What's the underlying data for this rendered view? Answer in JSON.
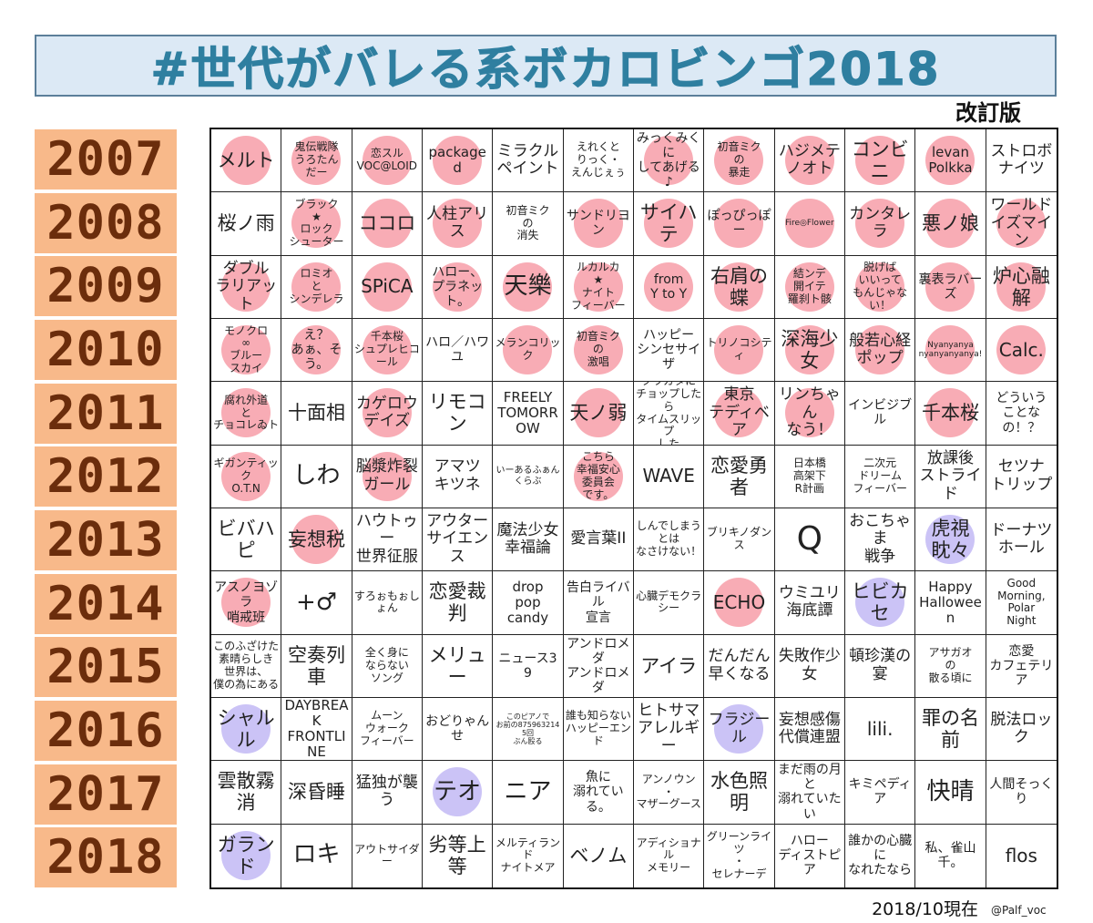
{
  "title": "#世代がバレる系ボカロビンゴ2018",
  "revision": "改訂版",
  "footer": {
    "date": "2018/10現在",
    "handle": "@Palf_voc"
  },
  "colors": {
    "mark_pink": "#f7a3ad",
    "mark_purple": "#c8c0f5",
    "year_bg": "#f8b98a",
    "year_text": "#6b2d0c",
    "title_bg": "#dce9f5",
    "title_text": "#2f7fa0"
  },
  "years": [
    "2007",
    "2008",
    "2009",
    "2010",
    "2011",
    "2012",
    "2013",
    "2014",
    "2015",
    "2016",
    "2017",
    "2018"
  ],
  "rows": [
    [
      {
        "t": "メルト",
        "m": "pink"
      },
      {
        "t": "鬼伝戦隊\nうろたん\nだー",
        "m": "pink"
      },
      {
        "t": "恋スル\nVOC@LOID",
        "m": "pink"
      },
      {
        "t": "packaged",
        "m": "pink"
      },
      {
        "t": "ミラクル\nペイント",
        "m": ""
      },
      {
        "t": "えれくと\nりっく・\nえんじぇぅ",
        "m": ""
      },
      {
        "t": "みっくみくに\nしてあげる♪",
        "m": "pink"
      },
      {
        "t": "初音ミク\nの\n暴走",
        "m": "pink"
      },
      {
        "t": "ハジメテ\nノオト",
        "m": "pink"
      },
      {
        "t": "コンビニ",
        "m": "pink"
      },
      {
        "t": "levan\nPolkka",
        "m": "pink"
      },
      {
        "t": "ストロボ\nナイツ",
        "m": ""
      }
    ],
    [
      {
        "t": "桜ノ雨",
        "m": ""
      },
      {
        "t": "ブラック\n★\nロック\nシューター",
        "m": "pink"
      },
      {
        "t": "ココロ",
        "m": "pink"
      },
      {
        "t": "人柱アリス",
        "m": "pink"
      },
      {
        "t": "初音ミク\nの\n消失",
        "m": ""
      },
      {
        "t": "サンドリヨン",
        "m": "pink"
      },
      {
        "t": "サイハテ",
        "m": "pink"
      },
      {
        "t": "ぽっぴっぽー",
        "m": "pink"
      },
      {
        "t": "Fire◎Flower",
        "m": "pink"
      },
      {
        "t": "カンタレラ",
        "m": "pink"
      },
      {
        "t": "悪ノ娘",
        "m": "pink"
      },
      {
        "t": "ワールド\nイズマイン",
        "m": "pink"
      }
    ],
    [
      {
        "t": "ダブル\nラリアット",
        "m": "pink"
      },
      {
        "t": "ロミオ\nと\nシンデレラ",
        "m": "pink"
      },
      {
        "t": "SPiCA",
        "m": "pink"
      },
      {
        "t": "ハロー、\nプラネット。",
        "m": "pink"
      },
      {
        "t": "天樂",
        "m": "pink"
      },
      {
        "t": "ルカルカ\n★\nナイト\nフィーバー",
        "m": "pink"
      },
      {
        "t": "from\nY to Y",
        "m": "pink"
      },
      {
        "t": "右肩の蝶",
        "m": "pink"
      },
      {
        "t": "結ンデ\n開イテ\n羅刹ト骸",
        "m": "pink"
      },
      {
        "t": "脱げば\nいいって\nもんじゃない！",
        "m": "pink"
      },
      {
        "t": "裏表ラバーズ",
        "m": "pink"
      },
      {
        "t": "炉心融解",
        "m": "pink"
      }
    ],
    [
      {
        "t": "モノクロ\n∞\nブルー\nスカイ",
        "m": "pink"
      },
      {
        "t": "え？\nあぁ、そう。",
        "m": "pink"
      },
      {
        "t": "千本桜\nシュプレヒコール",
        "m": "pink"
      },
      {
        "t": "ハロ／ハワユ",
        "m": ""
      },
      {
        "t": "メランコリック",
        "m": "pink"
      },
      {
        "t": "初音ミク\nの\n激唱",
        "m": "pink"
      },
      {
        "t": "ハッピー\nシンセサイザ",
        "m": ""
      },
      {
        "t": "トリノコシティ",
        "m": "pink"
      },
      {
        "t": "深海少女",
        "m": "pink"
      },
      {
        "t": "般若心経\nポップ",
        "m": "pink"
      },
      {
        "t": "Nyanyanya\nnyanyanyanya!",
        "m": "pink"
      },
      {
        "t": "Calc.",
        "m": "pink"
      }
    ],
    [
      {
        "t": "腐れ外道\nと\nチョコレゐト",
        "m": "pink"
      },
      {
        "t": "十面相",
        "m": ""
      },
      {
        "t": "カゲロウ\nデイズ",
        "m": "pink"
      },
      {
        "t": "リモコン",
        "m": ""
      },
      {
        "t": "FREELY\nTOMORROW",
        "m": ""
      },
      {
        "t": "天ノ弱",
        "m": "pink"
      },
      {
        "t": "クワガタに\nチョップしたら\nタイムスリップ\nした",
        "m": ""
      },
      {
        "t": "東京\nテディベア",
        "m": "pink"
      },
      {
        "t": "リンちゃん\nなう！",
        "m": "pink"
      },
      {
        "t": "インビジブル",
        "m": ""
      },
      {
        "t": "千本桜",
        "m": "pink"
      },
      {
        "t": "どういう\nことなの！？",
        "m": ""
      }
    ],
    [
      {
        "t": "ギガンティック\nO.T.N",
        "m": "pink"
      },
      {
        "t": "しわ",
        "m": ""
      },
      {
        "t": "脳漿炸裂\nガール",
        "m": "pink"
      },
      {
        "t": "アマツ\nキツネ",
        "m": ""
      },
      {
        "t": "いーあるふぁんくらぶ",
        "m": ""
      },
      {
        "t": "こちら\n幸福安心\n委員会\nです。",
        "m": "pink"
      },
      {
        "t": "WAVE",
        "m": ""
      },
      {
        "t": "恋愛勇者",
        "m": ""
      },
      {
        "t": "日本橋\n高架下\nR計画",
        "m": ""
      },
      {
        "t": "二次元\nドリーム\nフィーバー",
        "m": ""
      },
      {
        "t": "放課後\nストライド",
        "m": ""
      },
      {
        "t": "セツナ\nトリップ",
        "m": ""
      }
    ],
    [
      {
        "t": "ビバハピ",
        "m": ""
      },
      {
        "t": "妄想税",
        "m": "pink"
      },
      {
        "t": "ハウトゥー\n世界征服",
        "m": ""
      },
      {
        "t": "アウター\nサイエンス",
        "m": ""
      },
      {
        "t": "魔法少女\n幸福論",
        "m": ""
      },
      {
        "t": "愛言葉II",
        "m": ""
      },
      {
        "t": "しんでしまう\nとは\nなさけない！",
        "m": ""
      },
      {
        "t": "ブリキノダンス",
        "m": ""
      },
      {
        "t": "Q",
        "m": ""
      },
      {
        "t": "おこちゃま\n戦争",
        "m": ""
      },
      {
        "t": "虎視眈々",
        "m": "purple"
      },
      {
        "t": "ドーナツ\nホール",
        "m": ""
      }
    ],
    [
      {
        "t": "アスノヨゾラ\n哨戒班",
        "m": "pink"
      },
      {
        "t": "+♂",
        "m": ""
      },
      {
        "t": "すろぉもぉしょん",
        "m": ""
      },
      {
        "t": "恋愛裁判",
        "m": ""
      },
      {
        "t": "drop\npop\ncandy",
        "m": ""
      },
      {
        "t": "告白ライバル\n宣言",
        "m": ""
      },
      {
        "t": "心臓デモクラシー",
        "m": ""
      },
      {
        "t": "ECHO",
        "m": "pink"
      },
      {
        "t": "ウミユリ\n海底譚",
        "m": ""
      },
      {
        "t": "ヒビカセ",
        "m": "purple"
      },
      {
        "t": "Happy\nHalloween",
        "m": ""
      },
      {
        "t": "Good\nMorning,\nPolar\nNight",
        "m": ""
      }
    ],
    [
      {
        "t": "このふざけた\n素晴らしき\n世界は、\n僕の為にある",
        "m": ""
      },
      {
        "t": "空奏列車",
        "m": ""
      },
      {
        "t": "全く身に\nならない\nソング",
        "m": ""
      },
      {
        "t": "メリュー",
        "m": ""
      },
      {
        "t": "ニュース39",
        "m": ""
      },
      {
        "t": "アンドロメダ\nアンドロメダ",
        "m": ""
      },
      {
        "t": "アイラ",
        "m": ""
      },
      {
        "t": "だんだん\n早くなる",
        "m": ""
      },
      {
        "t": "失敗作少女",
        "m": ""
      },
      {
        "t": "頓珍漢の宴",
        "m": ""
      },
      {
        "t": "アサガオ\nの\n散る頃に",
        "m": ""
      },
      {
        "t": "恋愛\nカフェテリア",
        "m": ""
      }
    ],
    [
      {
        "t": "シャルル",
        "m": "purple"
      },
      {
        "t": "DAYBREAK\nFRONTLINE",
        "m": ""
      },
      {
        "t": "ムーン\nウォーク\nフィーバー",
        "m": ""
      },
      {
        "t": "おどりゃんせ",
        "m": ""
      },
      {
        "t": "このピアノで\nお前の8759632145回\nぶん殴る",
        "m": ""
      },
      {
        "t": "誰も知らない\nハッピーエンド",
        "m": ""
      },
      {
        "t": "ヒトサマ\nアレルギー",
        "m": ""
      },
      {
        "t": "フラジール",
        "m": "purple"
      },
      {
        "t": "妄想感傷\n代償連盟",
        "m": ""
      },
      {
        "t": "lili.",
        "m": ""
      },
      {
        "t": "罪の名前",
        "m": ""
      },
      {
        "t": "脱法ロック",
        "m": ""
      }
    ],
    [
      {
        "t": "雲散霧消",
        "m": ""
      },
      {
        "t": "深昏睡",
        "m": ""
      },
      {
        "t": "猛独が襲う",
        "m": ""
      },
      {
        "t": "テオ",
        "m": "purple"
      },
      {
        "t": "ニア",
        "m": ""
      },
      {
        "t": "魚に\n溺れている。",
        "m": ""
      },
      {
        "t": "アンノウン\n・\nマザーグース",
        "m": ""
      },
      {
        "t": "水色照明",
        "m": ""
      },
      {
        "t": "まだ雨の月と\n溺れていたい",
        "m": ""
      },
      {
        "t": "キミペディア",
        "m": ""
      },
      {
        "t": "快晴",
        "m": ""
      },
      {
        "t": "人間そっくり",
        "m": ""
      }
    ],
    [
      {
        "t": "ガランド",
        "m": "purple"
      },
      {
        "t": "ロキ",
        "m": ""
      },
      {
        "t": "アウトサイダー",
        "m": ""
      },
      {
        "t": "劣等上等",
        "m": ""
      },
      {
        "t": "メルティランド\nナイトメア",
        "m": ""
      },
      {
        "t": "ベノム",
        "m": ""
      },
      {
        "t": "アディショナル\nメモリー",
        "m": ""
      },
      {
        "t": "グリーンライツ\n・\nセレナーデ",
        "m": ""
      },
      {
        "t": "ハロー\nディストピア",
        "m": ""
      },
      {
        "t": "誰かの心臓に\nなれたなら",
        "m": ""
      },
      {
        "t": "私、雀山千。",
        "m": ""
      },
      {
        "t": "flos",
        "m": ""
      }
    ]
  ]
}
